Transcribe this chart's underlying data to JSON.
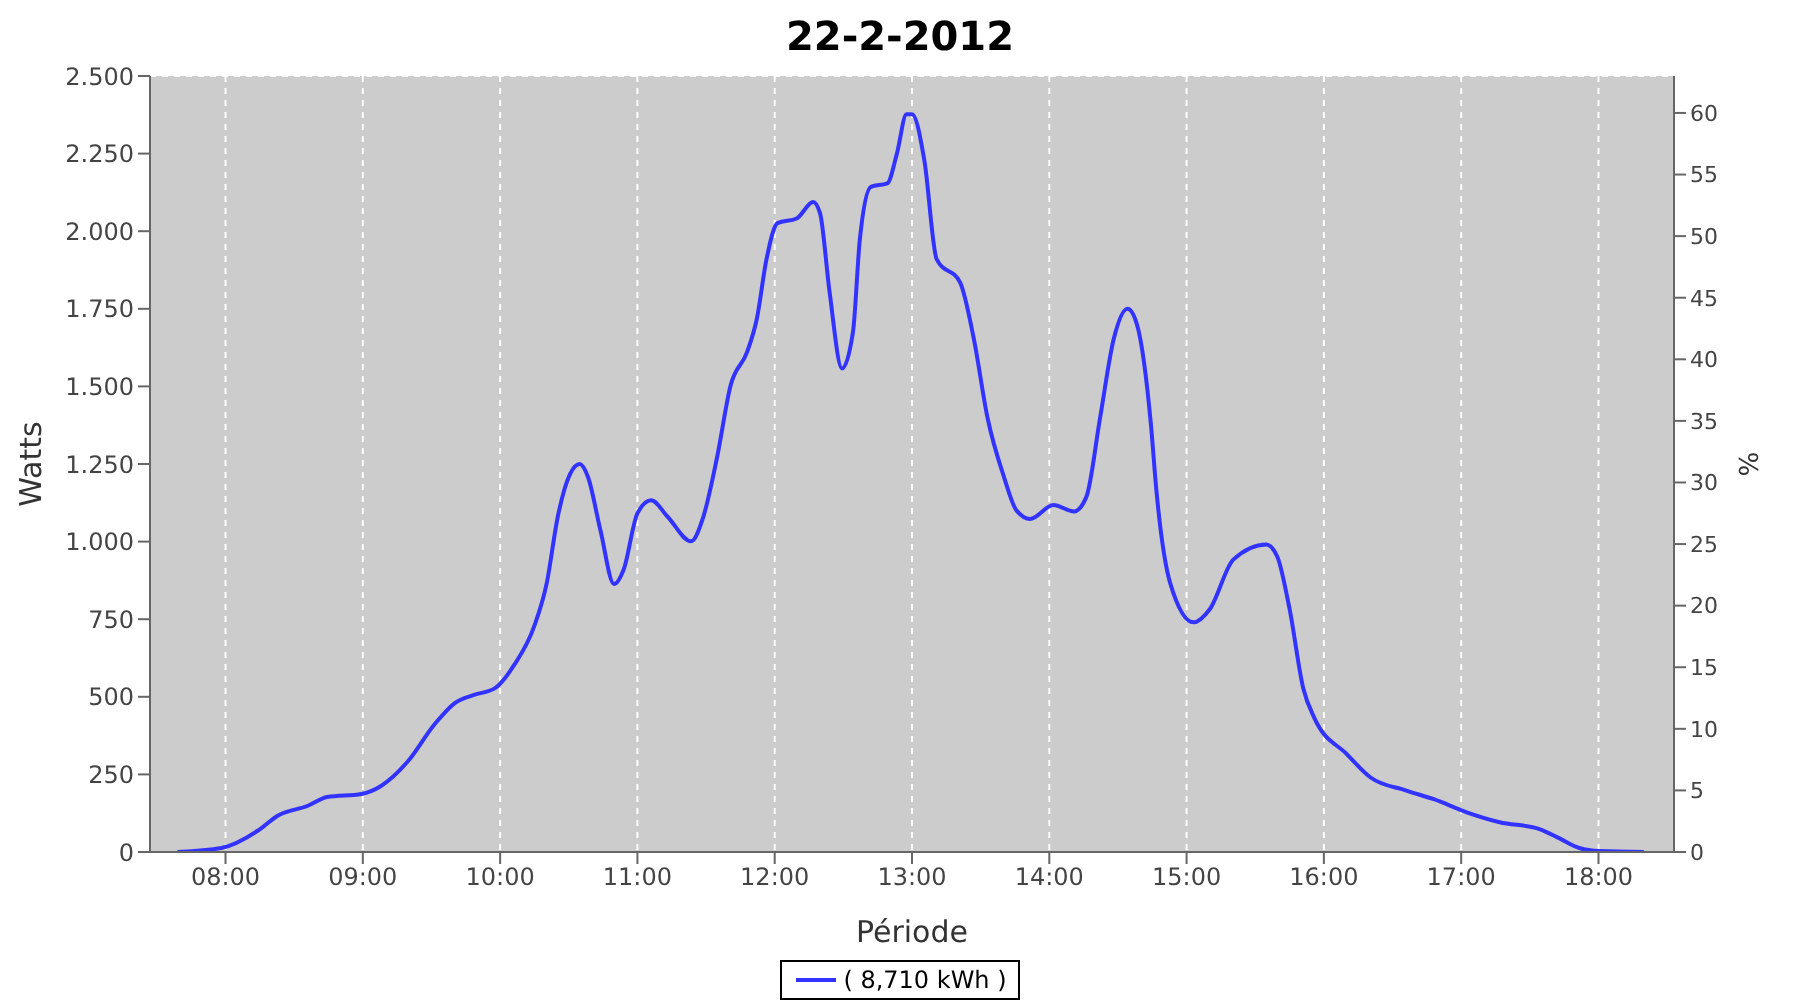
{
  "chart_data": {
    "type": "line",
    "title": "22-2-2012",
    "xlabel": "Période",
    "ylabel": "Watts",
    "y2label": "%",
    "x": [
      7.65,
      7.97,
      8.24,
      8.38,
      8.6,
      8.74,
      8.99,
      9.13,
      9.33,
      9.52,
      9.67,
      9.81,
      9.96,
      10.1,
      10.25,
      10.34,
      10.42,
      10.51,
      10.58,
      10.64,
      10.73,
      10.83,
      10.9,
      11.0,
      11.1,
      11.22,
      11.39,
      11.48,
      11.58,
      11.68,
      11.8,
      11.87,
      11.94,
      12.02,
      12.16,
      12.28,
      12.33,
      12.4,
      12.49,
      12.57,
      12.62,
      12.7,
      12.82,
      12.89,
      12.96,
      13.0,
      13.09,
      13.18,
      13.35,
      13.45,
      13.55,
      13.67,
      13.76,
      13.86,
      14.03,
      14.18,
      14.27,
      14.37,
      14.47,
      14.57,
      14.64,
      14.74,
      14.78,
      14.88,
      15.05,
      15.17,
      15.34,
      15.58,
      15.66,
      15.75,
      15.85,
      15.93,
      16.17,
      16.34,
      16.6,
      16.8,
      17.04,
      17.28,
      17.57,
      17.72,
      17.86,
      18.01,
      18.33
    ],
    "series": [
      {
        "name": "( 8,710 kWh )",
        "color": "#3333ff",
        "values": [
          0,
          13,
          70,
          117,
          149,
          177,
          187,
          212,
          293,
          410,
          480,
          506,
          527,
          601,
          729,
          867,
          1080,
          1218,
          1250,
          1208,
          1038,
          863,
          910,
          1091,
          1133,
          1080,
          1001,
          1080,
          1271,
          1505,
          1612,
          1718,
          1909,
          2026,
          2041,
          2094,
          2058,
          1803,
          1558,
          1675,
          1973,
          2143,
          2154,
          2250,
          2377,
          2377,
          2228,
          1909,
          1835,
          1654,
          1399,
          1208,
          1101,
          1073,
          1118,
          1097,
          1144,
          1399,
          1654,
          1750,
          1697,
          1378,
          1165,
          867,
          740,
          783,
          942,
          991,
          952,
          783,
          527,
          432,
          314,
          240,
          198,
          170,
          128,
          96,
          74,
          43,
          13,
          3,
          0
        ]
      }
    ],
    "xlim": [
      7.45,
      18.55
    ],
    "xticks": [
      {
        "value": 8,
        "label": "08:00"
      },
      {
        "value": 9,
        "label": "09:00"
      },
      {
        "value": 10,
        "label": "10:00"
      },
      {
        "value": 11,
        "label": "11:00"
      },
      {
        "value": 12,
        "label": "12:00"
      },
      {
        "value": 13,
        "label": "13:00"
      },
      {
        "value": 14,
        "label": "14:00"
      },
      {
        "value": 15,
        "label": "15:00"
      },
      {
        "value": 16,
        "label": "16:00"
      },
      {
        "value": 17,
        "label": "17:00"
      },
      {
        "value": 18,
        "label": "18:00"
      }
    ],
    "ylim": [
      0,
      2500
    ],
    "yticks": [
      {
        "value": 0,
        "label": "0"
      },
      {
        "value": 250,
        "label": "250"
      },
      {
        "value": 500,
        "label": "500"
      },
      {
        "value": 750,
        "label": "750"
      },
      {
        "value": 1000,
        "label": "1.000"
      },
      {
        "value": 1250,
        "label": "1.250"
      },
      {
        "value": 1500,
        "label": "1.500"
      },
      {
        "value": 1750,
        "label": "1.750"
      },
      {
        "value": 2000,
        "label": "2.000"
      },
      {
        "value": 2250,
        "label": "2.250"
      },
      {
        "value": 2500,
        "label": "2.500"
      }
    ],
    "y2lim": [
      0,
      63
    ],
    "y2ticks": [
      0,
      5,
      10,
      15,
      20,
      25,
      30,
      35,
      40,
      45,
      50,
      55,
      60
    ],
    "grid": true,
    "legend": "bottom"
  }
}
